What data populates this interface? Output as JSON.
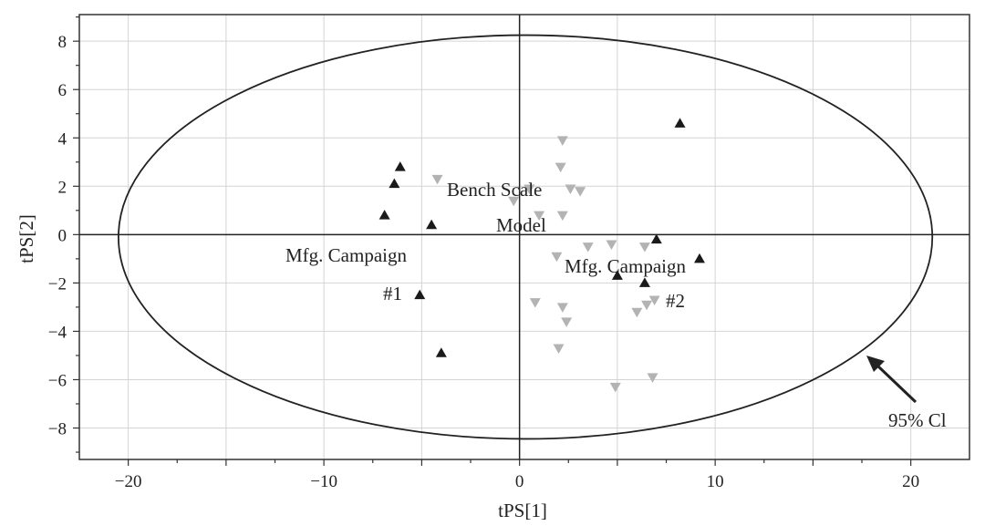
{
  "chart_data": {
    "type": "scatter",
    "title": "",
    "xlabel": "tPS[1]",
    "ylabel": "tPS[2]",
    "xlim": [
      -22.5,
      23
    ],
    "ylim": [
      -9.3,
      9.1
    ],
    "xticks": [
      -20,
      -10,
      0,
      10,
      20
    ],
    "xtick_labels": [
      "−20",
      "−10",
      "0",
      "10",
      "20"
    ],
    "yticks": [
      -8,
      -6,
      -4,
      -2,
      0,
      2,
      4,
      6,
      8
    ],
    "ytick_labels": [
      "−8",
      "−6",
      "−4",
      "−2",
      "0",
      "2",
      "4",
      "6",
      "8"
    ],
    "grid": true,
    "series": [
      {
        "marker": "triangle-down",
        "color": "#b3b3b3",
        "points": [
          [
            -4.2,
            2.3
          ],
          [
            -0.3,
            1.4
          ],
          [
            0.5,
            1.9
          ],
          [
            1.0,
            0.8
          ],
          [
            2.2,
            3.9
          ],
          [
            2.1,
            2.8
          ],
          [
            2.6,
            1.9
          ],
          [
            3.1,
            1.8
          ],
          [
            2.2,
            0.8
          ],
          [
            1.9,
            -0.9
          ],
          [
            3.5,
            -0.5
          ],
          [
            4.7,
            -0.4
          ],
          [
            6.4,
            -0.5
          ],
          [
            0.8,
            -2.8
          ],
          [
            2.2,
            -3.0
          ],
          [
            2.4,
            -3.6
          ],
          [
            2.0,
            -4.7
          ],
          [
            6.0,
            -3.2
          ],
          [
            6.5,
            -2.9
          ],
          [
            6.9,
            -2.7
          ],
          [
            4.9,
            -6.3
          ],
          [
            6.8,
            -5.9
          ]
        ]
      },
      {
        "marker": "triangle-up",
        "color": "#1a1a1a",
        "points": [
          [
            -6.1,
            2.8
          ],
          [
            -6.4,
            2.1
          ],
          [
            -6.9,
            0.8
          ],
          [
            -4.5,
            0.4
          ],
          [
            -5.1,
            -2.5
          ],
          [
            -4.0,
            -4.9
          ],
          [
            8.2,
            4.6
          ],
          [
            7.0,
            -0.2
          ],
          [
            9.2,
            -1.0
          ],
          [
            5.0,
            -1.7
          ],
          [
            6.4,
            -2.0
          ]
        ]
      }
    ],
    "ellipse": {
      "center": [
        0.3,
        -0.1
      ],
      "rx": 20.8,
      "ry": 8.35
    },
    "annotations": {
      "bench_scale": "Bench Scale",
      "model": "Model",
      "campaign_1": "Mfg. Campaign",
      "campaign_1_num": "#1",
      "campaign_2": "Mfg. Campaign",
      "campaign_2_num": "#2",
      "ci_label": "95% Cl"
    }
  }
}
